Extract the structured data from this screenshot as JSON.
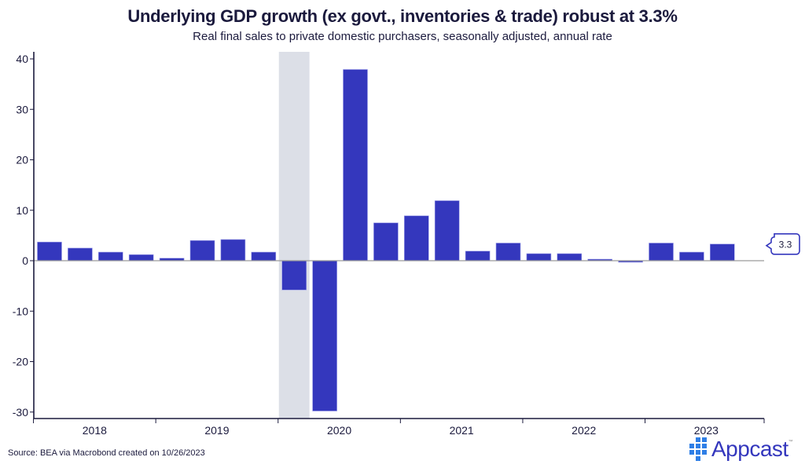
{
  "chart_data": {
    "type": "bar",
    "title": "Underlying GDP growth (ex govt., inventories & trade) robust at 3.3%",
    "subtitle": "Real final sales to private domestic purchasers, seasonally adjusted, annual rate",
    "xlabel": "",
    "ylabel": "",
    "ylim": [
      -31,
      41
    ],
    "yticks": [
      -30,
      -20,
      -10,
      0,
      10,
      20,
      30,
      40
    ],
    "ytick_labels": [
      "-30",
      "-20",
      "-10",
      "0",
      "10",
      "20",
      "30",
      "40"
    ],
    "year_labels": [
      "2018",
      "2019",
      "2020",
      "2021",
      "2022",
      "2023"
    ],
    "categories": [
      "2018Q1",
      "2018Q2",
      "2018Q3",
      "2018Q4",
      "2019Q1",
      "2019Q2",
      "2019Q3",
      "2019Q4",
      "2020Q1",
      "2020Q2",
      "2020Q3",
      "2020Q4",
      "2021Q1",
      "2021Q2",
      "2021Q3",
      "2021Q4",
      "2022Q1",
      "2022Q2",
      "2022Q3",
      "2022Q4",
      "2023Q1",
      "2023Q2",
      "2023Q3"
    ],
    "values": [
      3.7,
      2.5,
      1.7,
      1.2,
      0.5,
      4.0,
      4.2,
      1.7,
      -5.8,
      -29.8,
      37.9,
      7.5,
      8.9,
      11.9,
      1.9,
      3.5,
      1.4,
      1.4,
      0.3,
      -0.3,
      3.5,
      1.7,
      3.3
    ],
    "recession_shading": {
      "start": "2020Q1",
      "end": "2020Q1"
    },
    "last_value_label": "3.3",
    "grid": false,
    "legend": "none",
    "colors": {
      "bar": "#3437bd",
      "recession": "#dcdfe7",
      "axis": "#1b1a3d",
      "zero_line": "#9a9a9a"
    }
  },
  "footer": {
    "source": "Source: BEA via Macrobond created on 10/26/2023",
    "brand": "Appcast",
    "brand_tm": "™"
  }
}
